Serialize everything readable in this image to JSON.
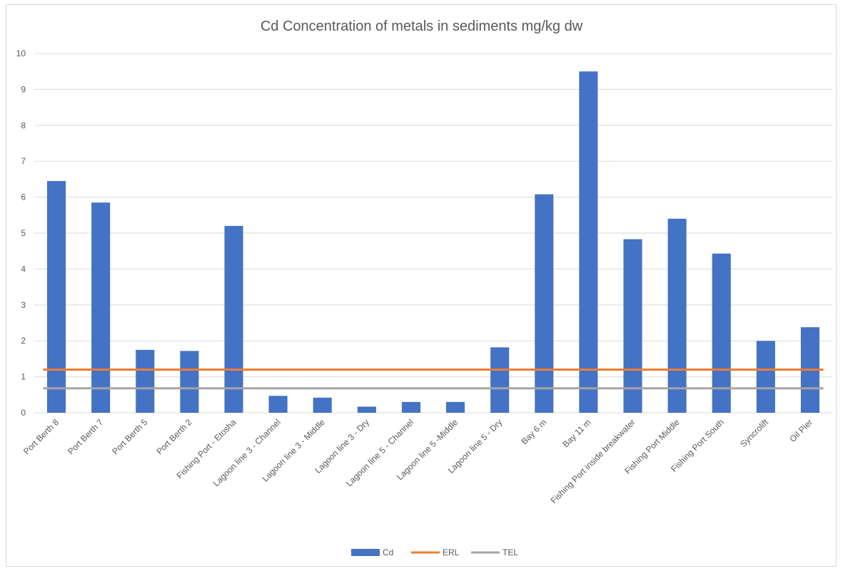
{
  "chart_data": {
    "type": "bar",
    "title": "Cd Concentration of metals in sediments mg/kg dw",
    "xlabel": "",
    "ylabel": "",
    "ylim": [
      0,
      10
    ],
    "yticks": [
      0,
      1,
      2,
      3,
      4,
      5,
      6,
      7,
      8,
      9,
      10
    ],
    "grid": true,
    "legend_position": "bottom",
    "categories": [
      "Port Berth 8",
      "Port Berth 7",
      "Port Berth 5",
      "Port Berth 2",
      "Fishing Port - Etosha",
      "Lagoon line 3 - Channel",
      "Lagoon line 3 - Middle",
      "Lagoon line 3 - Dry",
      "Lagoon line 5 - Channel",
      "Lagoon line 5 -Middle",
      "Lagoon line 5 - Dry",
      "Bay 6 m",
      "Bay 11 m",
      "Fishing Port inside breakwater",
      "Fishing Port Middle",
      "Fishing Port South",
      "Syncrolift",
      "Oil Pier"
    ],
    "series": [
      {
        "name": "Cd",
        "kind": "bar",
        "color": "#4472c4",
        "values": [
          6.45,
          5.85,
          1.75,
          1.72,
          5.2,
          0.47,
          0.42,
          0.17,
          0.3,
          0.3,
          1.82,
          6.08,
          9.5,
          4.83,
          5.4,
          4.43,
          2.0,
          2.38
        ]
      },
      {
        "name": "ERL",
        "kind": "line",
        "color": "#ed7d31",
        "values": [
          1.2,
          1.2,
          1.2,
          1.2,
          1.2,
          1.2,
          1.2,
          1.2,
          1.2,
          1.2,
          1.2,
          1.2,
          1.2,
          1.2,
          1.2,
          1.2,
          1.2,
          1.2
        ]
      },
      {
        "name": "TEL",
        "kind": "line",
        "color": "#a5a5a5",
        "values": [
          0.68,
          0.68,
          0.68,
          0.68,
          0.68,
          0.68,
          0.68,
          0.68,
          0.68,
          0.68,
          0.68,
          0.68,
          0.68,
          0.68,
          0.68,
          0.68,
          0.68,
          0.68
        ]
      }
    ]
  }
}
